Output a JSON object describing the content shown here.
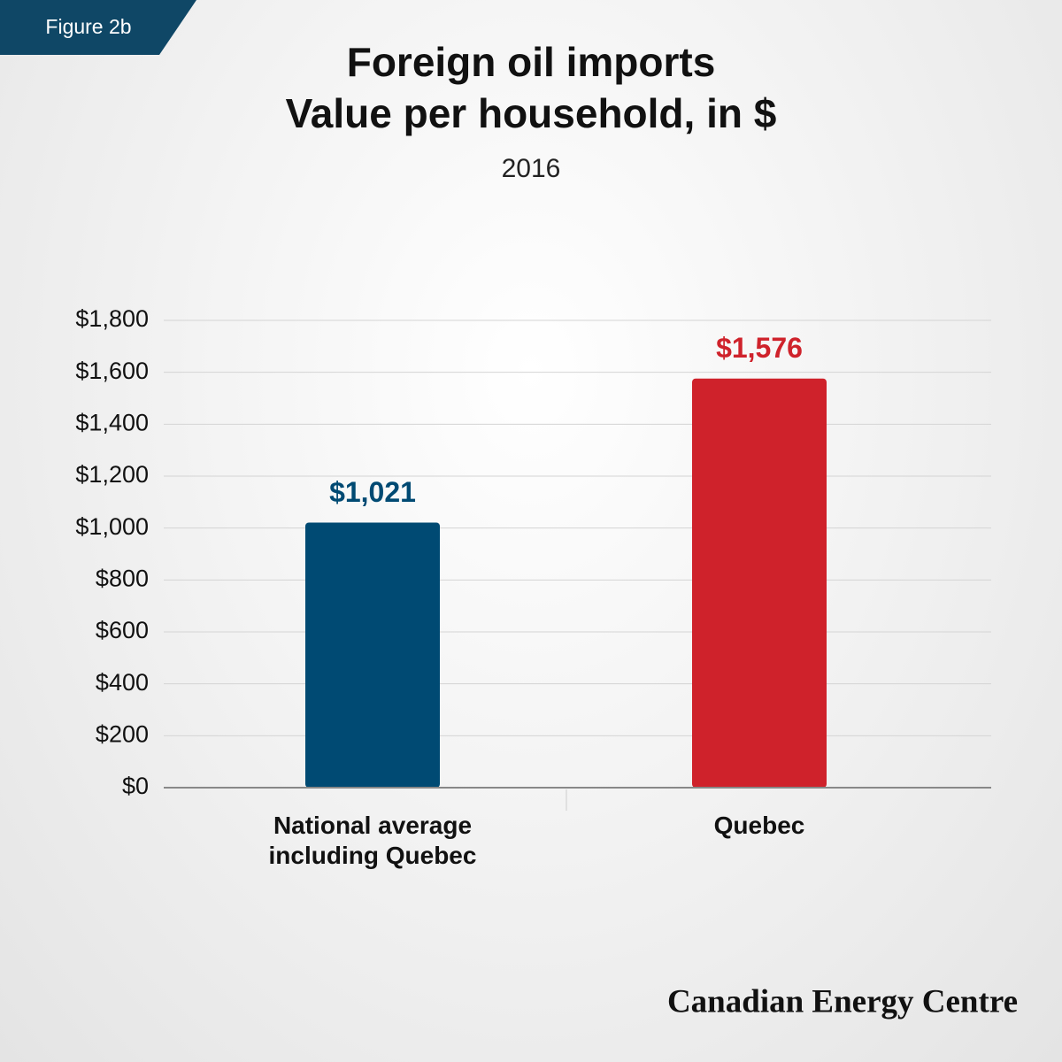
{
  "figure_label": "Figure 2b",
  "source": "Canadian Energy Centre",
  "chart_data": {
    "type": "bar",
    "title": "Foreign oil imports",
    "subtitle": "Value per household, in $",
    "period": "2016",
    "categories": [
      "National average including Quebec",
      "Quebec"
    ],
    "values": [
      1021,
      1576
    ],
    "value_labels": [
      "$1,021",
      "$1,576"
    ],
    "colors": [
      "#004a73",
      "#cf222b"
    ],
    "ylim": [
      0,
      1800
    ],
    "yticks": [
      {
        "value": 0,
        "label": "$0"
      },
      {
        "value": 200,
        "label": "$200"
      },
      {
        "value": 400,
        "label": "$400"
      },
      {
        "value": 600,
        "label": "$600"
      },
      {
        "value": 800,
        "label": "$800"
      },
      {
        "value": 1000,
        "label": "$1,000"
      },
      {
        "value": 1200,
        "label": "$1,200"
      },
      {
        "value": 1400,
        "label": "$1,400"
      },
      {
        "value": 1600,
        "label": "$1,600"
      },
      {
        "value": 1800,
        "label": "$1,800"
      }
    ],
    "grid": true
  }
}
